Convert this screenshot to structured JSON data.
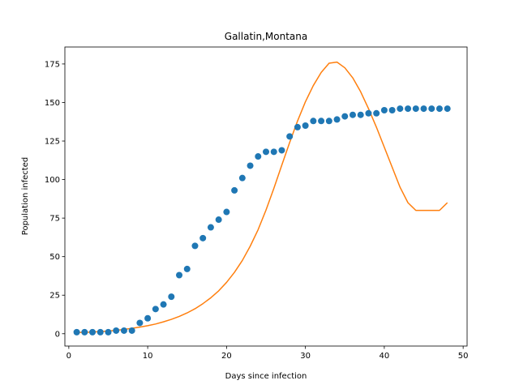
{
  "chart_data": {
    "type": "scatter",
    "title": "Gallatin,Montana",
    "xlabel": "Days since infection",
    "ylabel": "Population infected",
    "xlim": [
      -0.5,
      50.5
    ],
    "ylim": [
      -8,
      186
    ],
    "xticks": [
      0,
      10,
      20,
      30,
      40,
      50
    ],
    "yticks": [
      0,
      25,
      50,
      75,
      100,
      125,
      150,
      175
    ],
    "grid": false,
    "series": [
      {
        "kind": "scatter",
        "color": "#1f77b4",
        "x": [
          1,
          2,
          3,
          4,
          5,
          6,
          7,
          8,
          9,
          10,
          11,
          12,
          13,
          14,
          15,
          16,
          17,
          18,
          19,
          20,
          21,
          22,
          23,
          24,
          25,
          26,
          27,
          28,
          29,
          30,
          31,
          32,
          33,
          34,
          35,
          36,
          37,
          38,
          39,
          40,
          41,
          42,
          43,
          44,
          45,
          46,
          47,
          48
        ],
        "y": [
          1,
          1,
          1,
          1,
          1,
          2,
          2,
          2,
          7,
          10,
          16,
          19,
          24,
          38,
          42,
          57,
          62,
          69,
          74,
          79,
          93,
          101,
          109,
          115,
          118,
          118,
          119,
          128,
          134,
          135,
          138,
          138,
          138,
          139,
          141,
          142,
          142,
          143,
          143,
          145,
          145,
          146,
          146,
          146,
          146,
          146,
          146,
          146
        ]
      },
      {
        "kind": "line",
        "color": "#ff7f0e",
        "x": [
          1,
          2,
          3,
          4,
          5,
          6,
          7,
          8,
          9,
          10,
          11,
          12,
          13,
          14,
          15,
          16,
          17,
          18,
          19,
          20,
          21,
          22,
          23,
          24,
          25,
          26,
          27,
          28,
          29,
          30,
          31,
          32,
          33,
          34,
          35,
          36,
          37,
          38,
          39,
          40,
          41,
          42,
          43,
          44,
          45,
          46,
          47,
          48
        ],
        "y": [
          0.8,
          0.9,
          1.1,
          1.4,
          1.7,
          2.2,
          2.8,
          3.5,
          4.3,
          5.2,
          6.3,
          7.7,
          9.3,
          11.2,
          13.5,
          16.2,
          19.5,
          23.3,
          27.8,
          33.3,
          39.8,
          47.5,
          56.8,
          67.5,
          80.2,
          94.3,
          109.3,
          124,
          138,
          150.5,
          161,
          169.5,
          175.5,
          176.2,
          172.5,
          166,
          157,
          146,
          134,
          121,
          108,
          95,
          85,
          80,
          80,
          80,
          80,
          85
        ]
      }
    ]
  }
}
